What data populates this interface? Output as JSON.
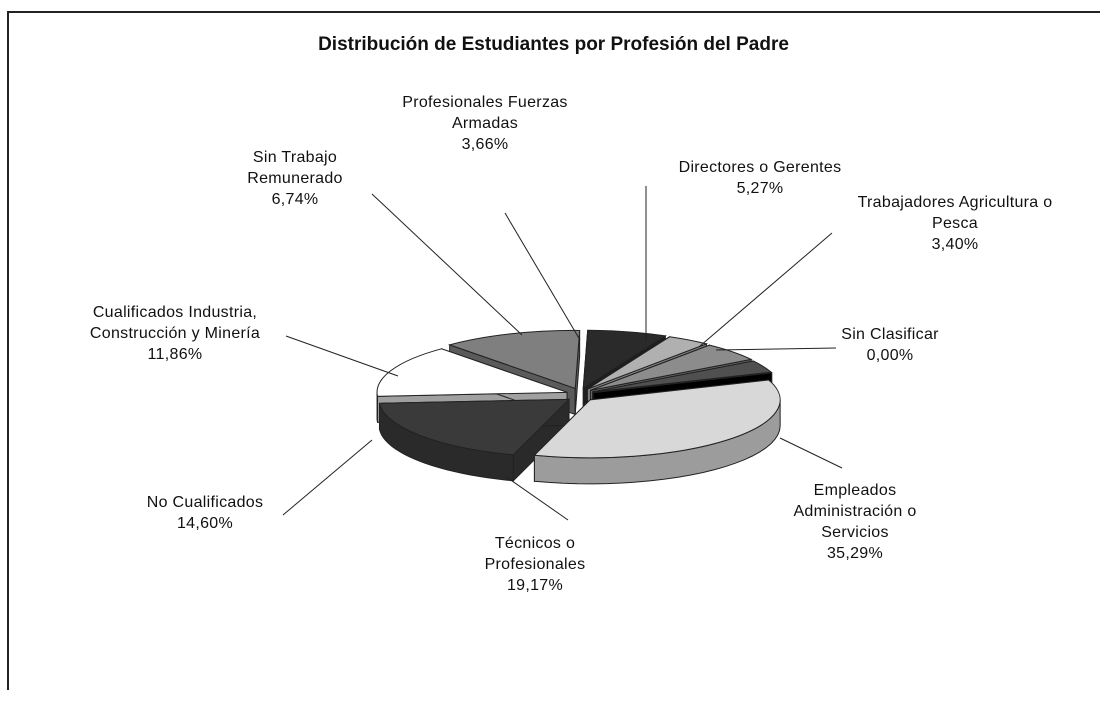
{
  "chart_data": {
    "type": "pie",
    "title": "Distribución de Estudiantes por Profesión del Padre",
    "categories": [
      "Empleados Administración o Servicios",
      "Técnicos o Profesionales",
      "No Cualificados",
      "Cualificados Industria, Construcción y Minería",
      "Sin Trabajo Remunerado",
      "Profesionales Fuerzas Armadas",
      "Directores o Gerentes",
      "Trabajadores Agricultura o Pesca",
      "Sin Clasificar"
    ],
    "values": [
      35.29,
      19.17,
      14.6,
      11.86,
      6.74,
      3.66,
      5.27,
      3.4,
      0.0
    ],
    "value_labels": [
      "35,29%",
      "19,17%",
      "14,60%",
      "11,86%",
      "6,74%",
      "3,66%",
      "5,27%",
      "3,40%",
      "0,00%"
    ],
    "colors": [
      "#d8d8d8",
      "#3a3a3a",
      "#ffffff",
      "#7f7f7f",
      "#2a2a2a",
      "#b0b0b0",
      "#8c8c8c",
      "#505050",
      "#000000"
    ]
  }
}
